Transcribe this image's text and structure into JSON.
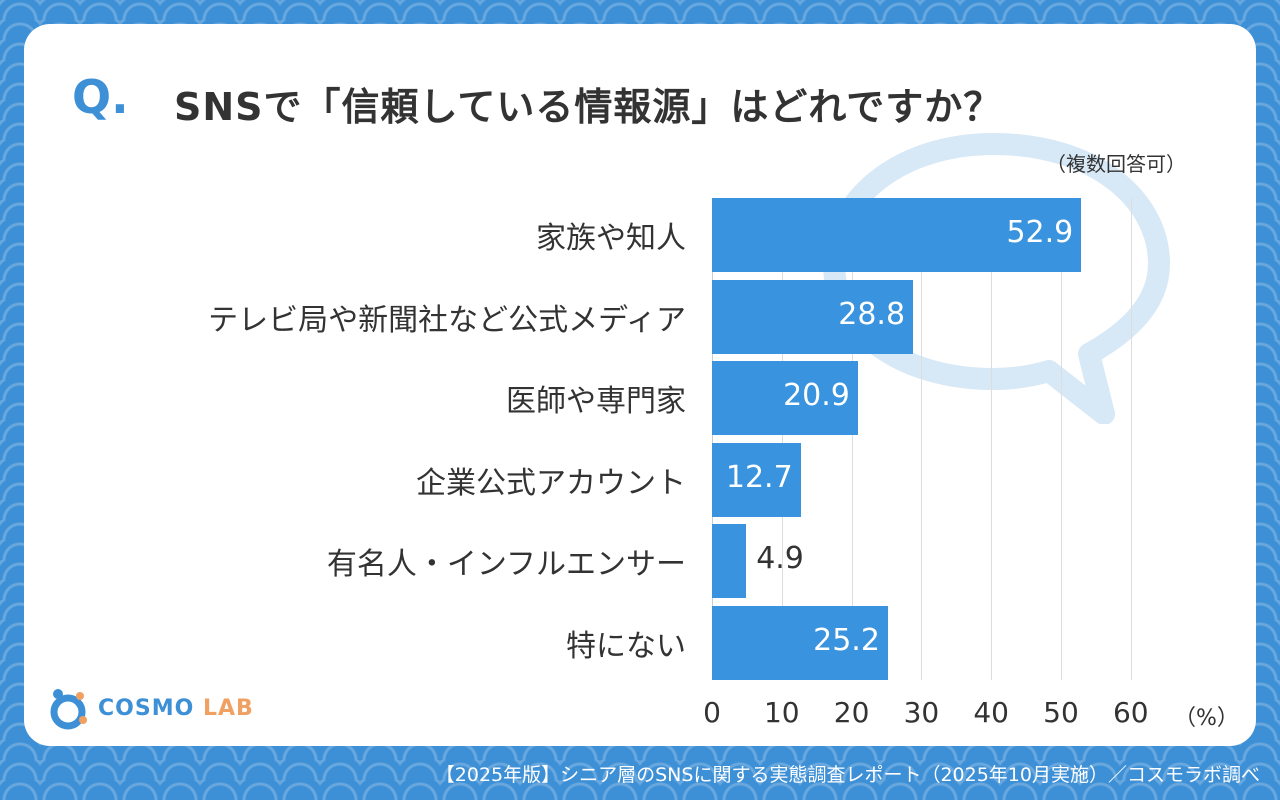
{
  "question": {
    "mark": "Q.",
    "text": "SNSで「信頼している情報源」はどれですか？",
    "note": "（複数回答可）"
  },
  "chart_data": {
    "type": "bar",
    "orientation": "horizontal",
    "categories": [
      "家族や知人",
      "テレビ局や新聞社など公式メディア",
      "医師や専門家",
      "企業公式アカウント",
      "有名人・インフルエンサー",
      "特にない"
    ],
    "values": [
      52.9,
      28.8,
      20.9,
      12.7,
      4.9,
      25.2
    ],
    "value_labels": [
      "52.9",
      "28.8",
      "20.9",
      "12.7",
      "4.9",
      "25.2"
    ],
    "xlim": [
      0,
      60
    ],
    "xticks": [
      "0",
      "10",
      "20",
      "30",
      "40",
      "50",
      "60"
    ],
    "unit": "（%）",
    "grid": true,
    "bar_color": "#3993de"
  },
  "logo": {
    "cosmo": "COSMO",
    "lab": "LAB"
  },
  "footer": "【2025年版】シニア層のSNSに関する実態調査レポート（2025年10月実施）／コスモラボ調べ",
  "colors": {
    "accent": "#3d8fd6",
    "bar": "#3993de",
    "logo_accent": "#f0a060"
  }
}
